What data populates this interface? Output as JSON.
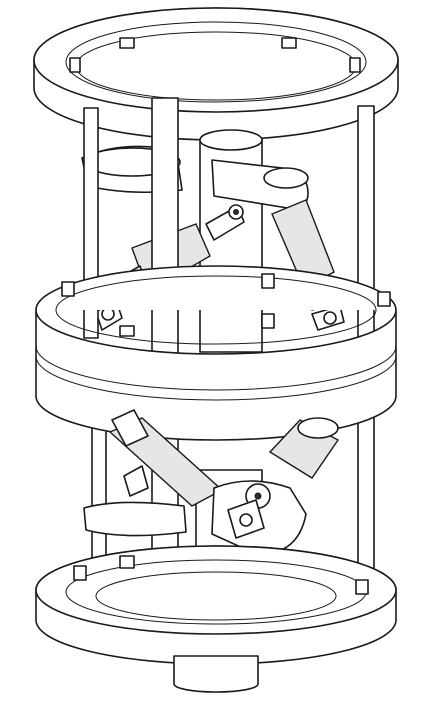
{
  "figure": {
    "subject": "two-stage-hexapod-platform",
    "colors": {
      "line": "#1a1a1a",
      "fill": "#ffffff",
      "shade": "#e6e6e6"
    }
  }
}
